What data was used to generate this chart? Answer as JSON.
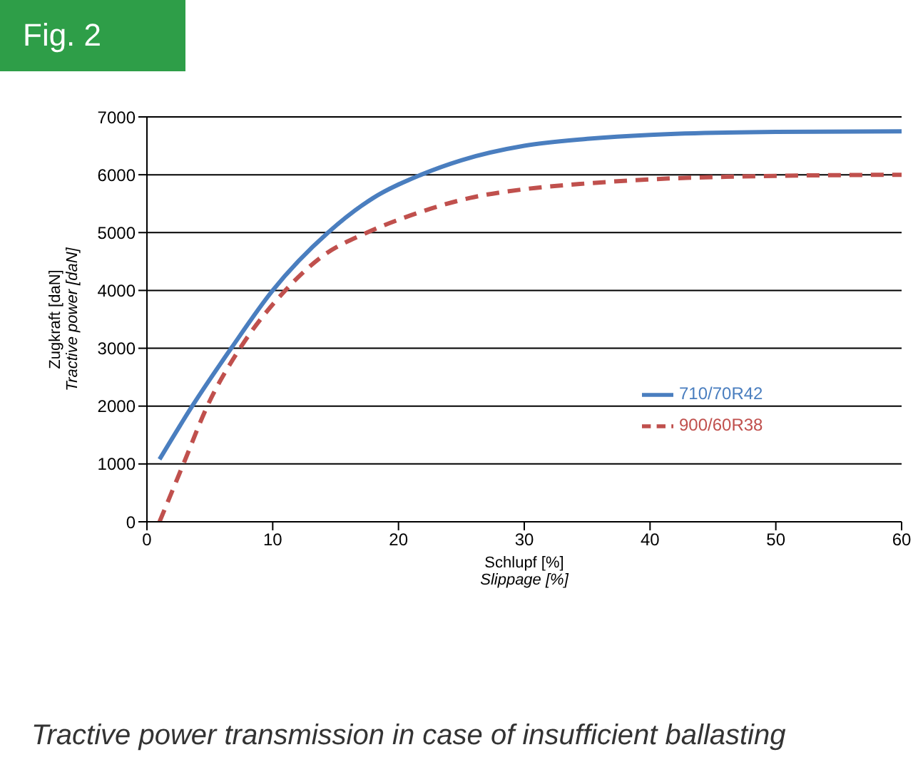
{
  "chart_data": {
    "type": "line",
    "title": "Fig. 2",
    "xlabel": "Schlupf [%]\nSlippage [%]",
    "ylabel": "Zugkraft [daN]\nTractive power [daN]",
    "annotations": [
      "Tractive power transmission in case of insufficient ballasting"
    ],
    "series": [
      {
        "name": "710/70R42",
        "color": "#4a7ebf",
        "line_style": "solid",
        "x": [
          1,
          3.6,
          6.7,
          10,
          14.4,
          18,
          21.8,
          25,
          30,
          35,
          40,
          50,
          60
        ],
        "values": [
          1080,
          2000,
          3000,
          4000,
          5000,
          5600,
          6000,
          6250,
          6500,
          6620,
          6690,
          6740,
          6750
        ]
      },
      {
        "name": "900/60R38",
        "color": "#c0504d",
        "line_style": "dashed",
        "x": [
          1,
          2.9,
          4.8,
          7.4,
          11,
          14,
          17.5,
          21,
          25.7,
          30,
          35,
          40,
          50,
          60
        ],
        "values": [
          0,
          1000,
          2000,
          3000,
          4000,
          4600,
          5000,
          5300,
          5600,
          5750,
          5850,
          5920,
          5980,
          6000
        ]
      }
    ],
    "xlim": [
      0,
      60
    ],
    "xticks": [
      0,
      10,
      20,
      30,
      40,
      50,
      60
    ],
    "ylim": [
      0,
      7000
    ],
    "yticks": [
      0,
      1000,
      2000,
      3000,
      4000,
      5000,
      6000,
      7000
    ],
    "grid": "y",
    "legend": "right",
    "marker": "none"
  }
}
